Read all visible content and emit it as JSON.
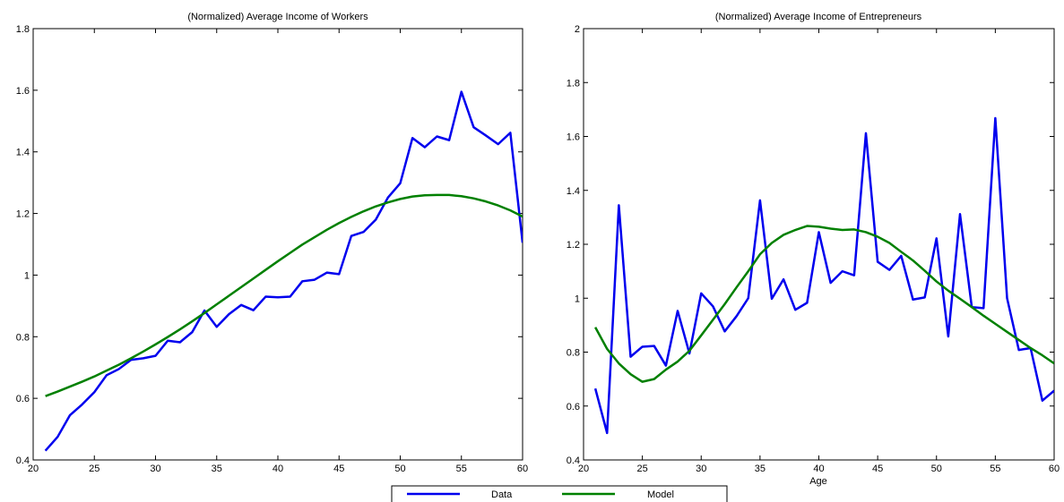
{
  "chart_data": [
    {
      "type": "line",
      "title": "(Normalized) Average Income of Workers",
      "xlabel": "",
      "ylabel": "",
      "xlim": [
        20,
        60
      ],
      "ylim": [
        0.4,
        1.8
      ],
      "xticks": [
        "20",
        "25",
        "30",
        "35",
        "40",
        "45",
        "50",
        "55",
        "60"
      ],
      "yticks": [
        "0.4",
        "0.6",
        "0.8",
        "1",
        "1.2",
        "1.4",
        "1.6",
        "1.8"
      ],
      "grid": false,
      "x": [
        21,
        22,
        23,
        24,
        25,
        26,
        27,
        28,
        29,
        30,
        31,
        32,
        33,
        34,
        35,
        36,
        37,
        38,
        39,
        40,
        41,
        42,
        43,
        44,
        45,
        46,
        47,
        48,
        49,
        50,
        51,
        52,
        53,
        54,
        55,
        56,
        57,
        58,
        59,
        60
      ],
      "series": [
        {
          "name": "Data",
          "color": "#0000ee",
          "values": [
            0.43,
            0.475,
            0.545,
            0.58,
            0.62,
            0.675,
            0.695,
            0.725,
            0.73,
            0.738,
            0.787,
            0.782,
            0.815,
            0.885,
            0.832,
            0.873,
            0.903,
            0.886,
            0.93,
            0.928,
            0.93,
            0.98,
            0.985,
            1.008,
            1.003,
            1.127,
            1.14,
            1.18,
            1.252,
            1.298,
            1.445,
            1.415,
            1.45,
            1.438,
            1.595,
            1.48,
            1.453,
            1.425,
            1.462,
            1.105
          ]
        },
        {
          "name": "Model",
          "color": "#008000",
          "values": [
            0.607,
            0.622,
            0.638,
            0.654,
            0.671,
            0.69,
            0.709,
            0.73,
            0.752,
            0.775,
            0.799,
            0.824,
            0.85,
            0.877,
            0.905,
            0.933,
            0.961,
            0.989,
            1.017,
            1.045,
            1.072,
            1.099,
            1.123,
            1.147,
            1.169,
            1.189,
            1.207,
            1.223,
            1.236,
            1.247,
            1.255,
            1.259,
            1.26,
            1.26,
            1.256,
            1.249,
            1.239,
            1.226,
            1.21,
            1.19
          ]
        }
      ]
    },
    {
      "type": "line",
      "title": "(Normalized) Average Income of Entrepreneurs",
      "xlabel": "Age",
      "ylabel": "",
      "xlim": [
        20,
        60
      ],
      "ylim": [
        0.4,
        2.0
      ],
      "xticks": [
        "20",
        "25",
        "30",
        "35",
        "40",
        "45",
        "50",
        "55",
        "60"
      ],
      "yticks": [
        "0.4",
        "0.6",
        "0.8",
        "1",
        "1.2",
        "1.4",
        "1.6",
        "1.8",
        "2"
      ],
      "grid": false,
      "x": [
        21,
        22,
        23,
        24,
        25,
        26,
        27,
        28,
        29,
        30,
        31,
        32,
        33,
        34,
        35,
        36,
        37,
        38,
        39,
        40,
        41,
        42,
        43,
        44,
        45,
        46,
        47,
        48,
        49,
        50,
        51,
        52,
        53,
        54,
        55,
        56,
        57,
        58,
        59,
        60
      ],
      "series": [
        {
          "name": "Data",
          "color": "#0000ee",
          "values": [
            0.665,
            0.5,
            1.345,
            0.783,
            0.82,
            0.823,
            0.75,
            0.953,
            0.795,
            1.018,
            0.97,
            0.877,
            0.933,
            1.0,
            1.363,
            0.998,
            1.07,
            0.957,
            0.983,
            1.245,
            1.057,
            1.1,
            1.085,
            1.612,
            1.135,
            1.105,
            1.157,
            0.995,
            1.003,
            1.222,
            0.858,
            1.312,
            0.967,
            0.963,
            1.668,
            1.0,
            0.808,
            0.815,
            0.62,
            0.657
          ]
        },
        {
          "name": "Model",
          "color": "#008000",
          "values": [
            0.892,
            0.812,
            0.758,
            0.718,
            0.69,
            0.7,
            0.735,
            0.765,
            0.805,
            0.862,
            0.92,
            0.978,
            1.04,
            1.1,
            1.163,
            1.205,
            1.235,
            1.253,
            1.268,
            1.265,
            1.258,
            1.253,
            1.255,
            1.245,
            1.228,
            1.205,
            1.172,
            1.14,
            1.102,
            1.062,
            1.028,
            0.998,
            0.967,
            0.935,
            0.905,
            0.875,
            0.845,
            0.815,
            0.788,
            0.758
          ]
        }
      ]
    }
  ],
  "legend": {
    "placement": "bottom-center",
    "entries": [
      {
        "label": "Data",
        "color": "#0000ee"
      },
      {
        "label": "Model",
        "color": "#008000"
      }
    ]
  }
}
